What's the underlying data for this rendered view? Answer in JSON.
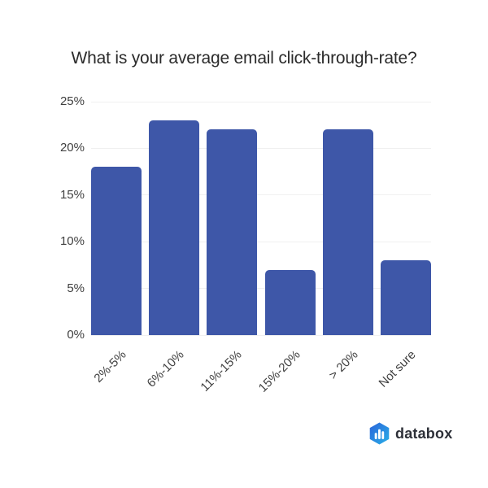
{
  "title": "What is your average email click-through-rate?",
  "chart_data": {
    "type": "bar",
    "title": "What is your average email click-through-rate?",
    "categories": [
      "2%-5%",
      "6%-10%",
      "11%-15%",
      "15%-20%",
      "> 20%",
      "Not sure"
    ],
    "values": [
      18,
      23,
      22,
      7,
      22,
      8
    ],
    "xlabel": "",
    "ylabel": "",
    "ylim": [
      0,
      25
    ],
    "yticks": [
      0,
      5,
      10,
      15,
      20,
      25
    ],
    "ytick_labels": [
      "0%",
      "5%",
      "10%",
      "15%",
      "20%",
      "25%"
    ],
    "grid": true,
    "legend": "none",
    "bar_color": "#3e57a8",
    "x_label_rotation": -45
  },
  "colors": {
    "background": "#ffffff",
    "bar": "#3e57a8",
    "gridline": "#f0f0f0",
    "axis_text": "#404040",
    "title_text": "#2b2b2b"
  },
  "branding": {
    "logo_text": "databox",
    "logo_icon": "hexagon-bar-chart-icon",
    "logo_gradient_start": "#2b63d9",
    "logo_gradient_end": "#29b1e8",
    "logo_text_color": "#2d3038"
  }
}
